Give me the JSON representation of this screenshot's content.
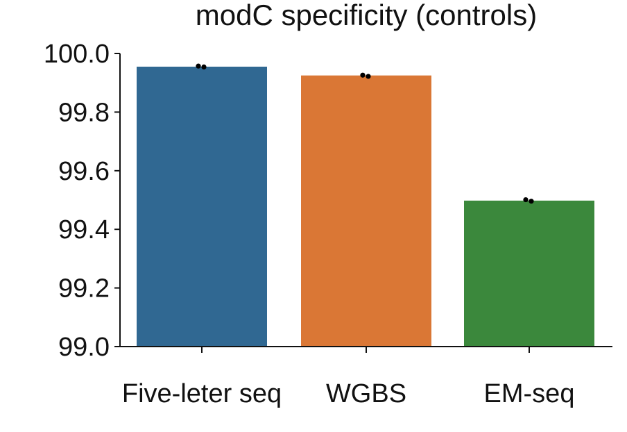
{
  "chart_data": {
    "type": "bar",
    "title": "modC specificity (controls)",
    "xlabel": "",
    "ylabel": "",
    "categories": [
      "Five-leter seq",
      "WGBS",
      "EM-seq"
    ],
    "values": [
      99.955,
      99.925,
      99.498
    ],
    "colors": [
      "#306892",
      "#da7735",
      "#3b883c"
    ],
    "points": [
      [
        99.957,
        99.954
      ],
      [
        99.926,
        99.922
      ],
      [
        99.501,
        99.496
      ]
    ],
    "ylim": [
      99.0,
      100.0
    ],
    "yticks": [
      99.0,
      99.2,
      99.4,
      99.6,
      99.8,
      100.0
    ],
    "ytick_labels": [
      "99.0",
      "99.2",
      "99.4",
      "99.6",
      "99.8",
      "100.0"
    ],
    "legend": "none",
    "grid": false
  }
}
